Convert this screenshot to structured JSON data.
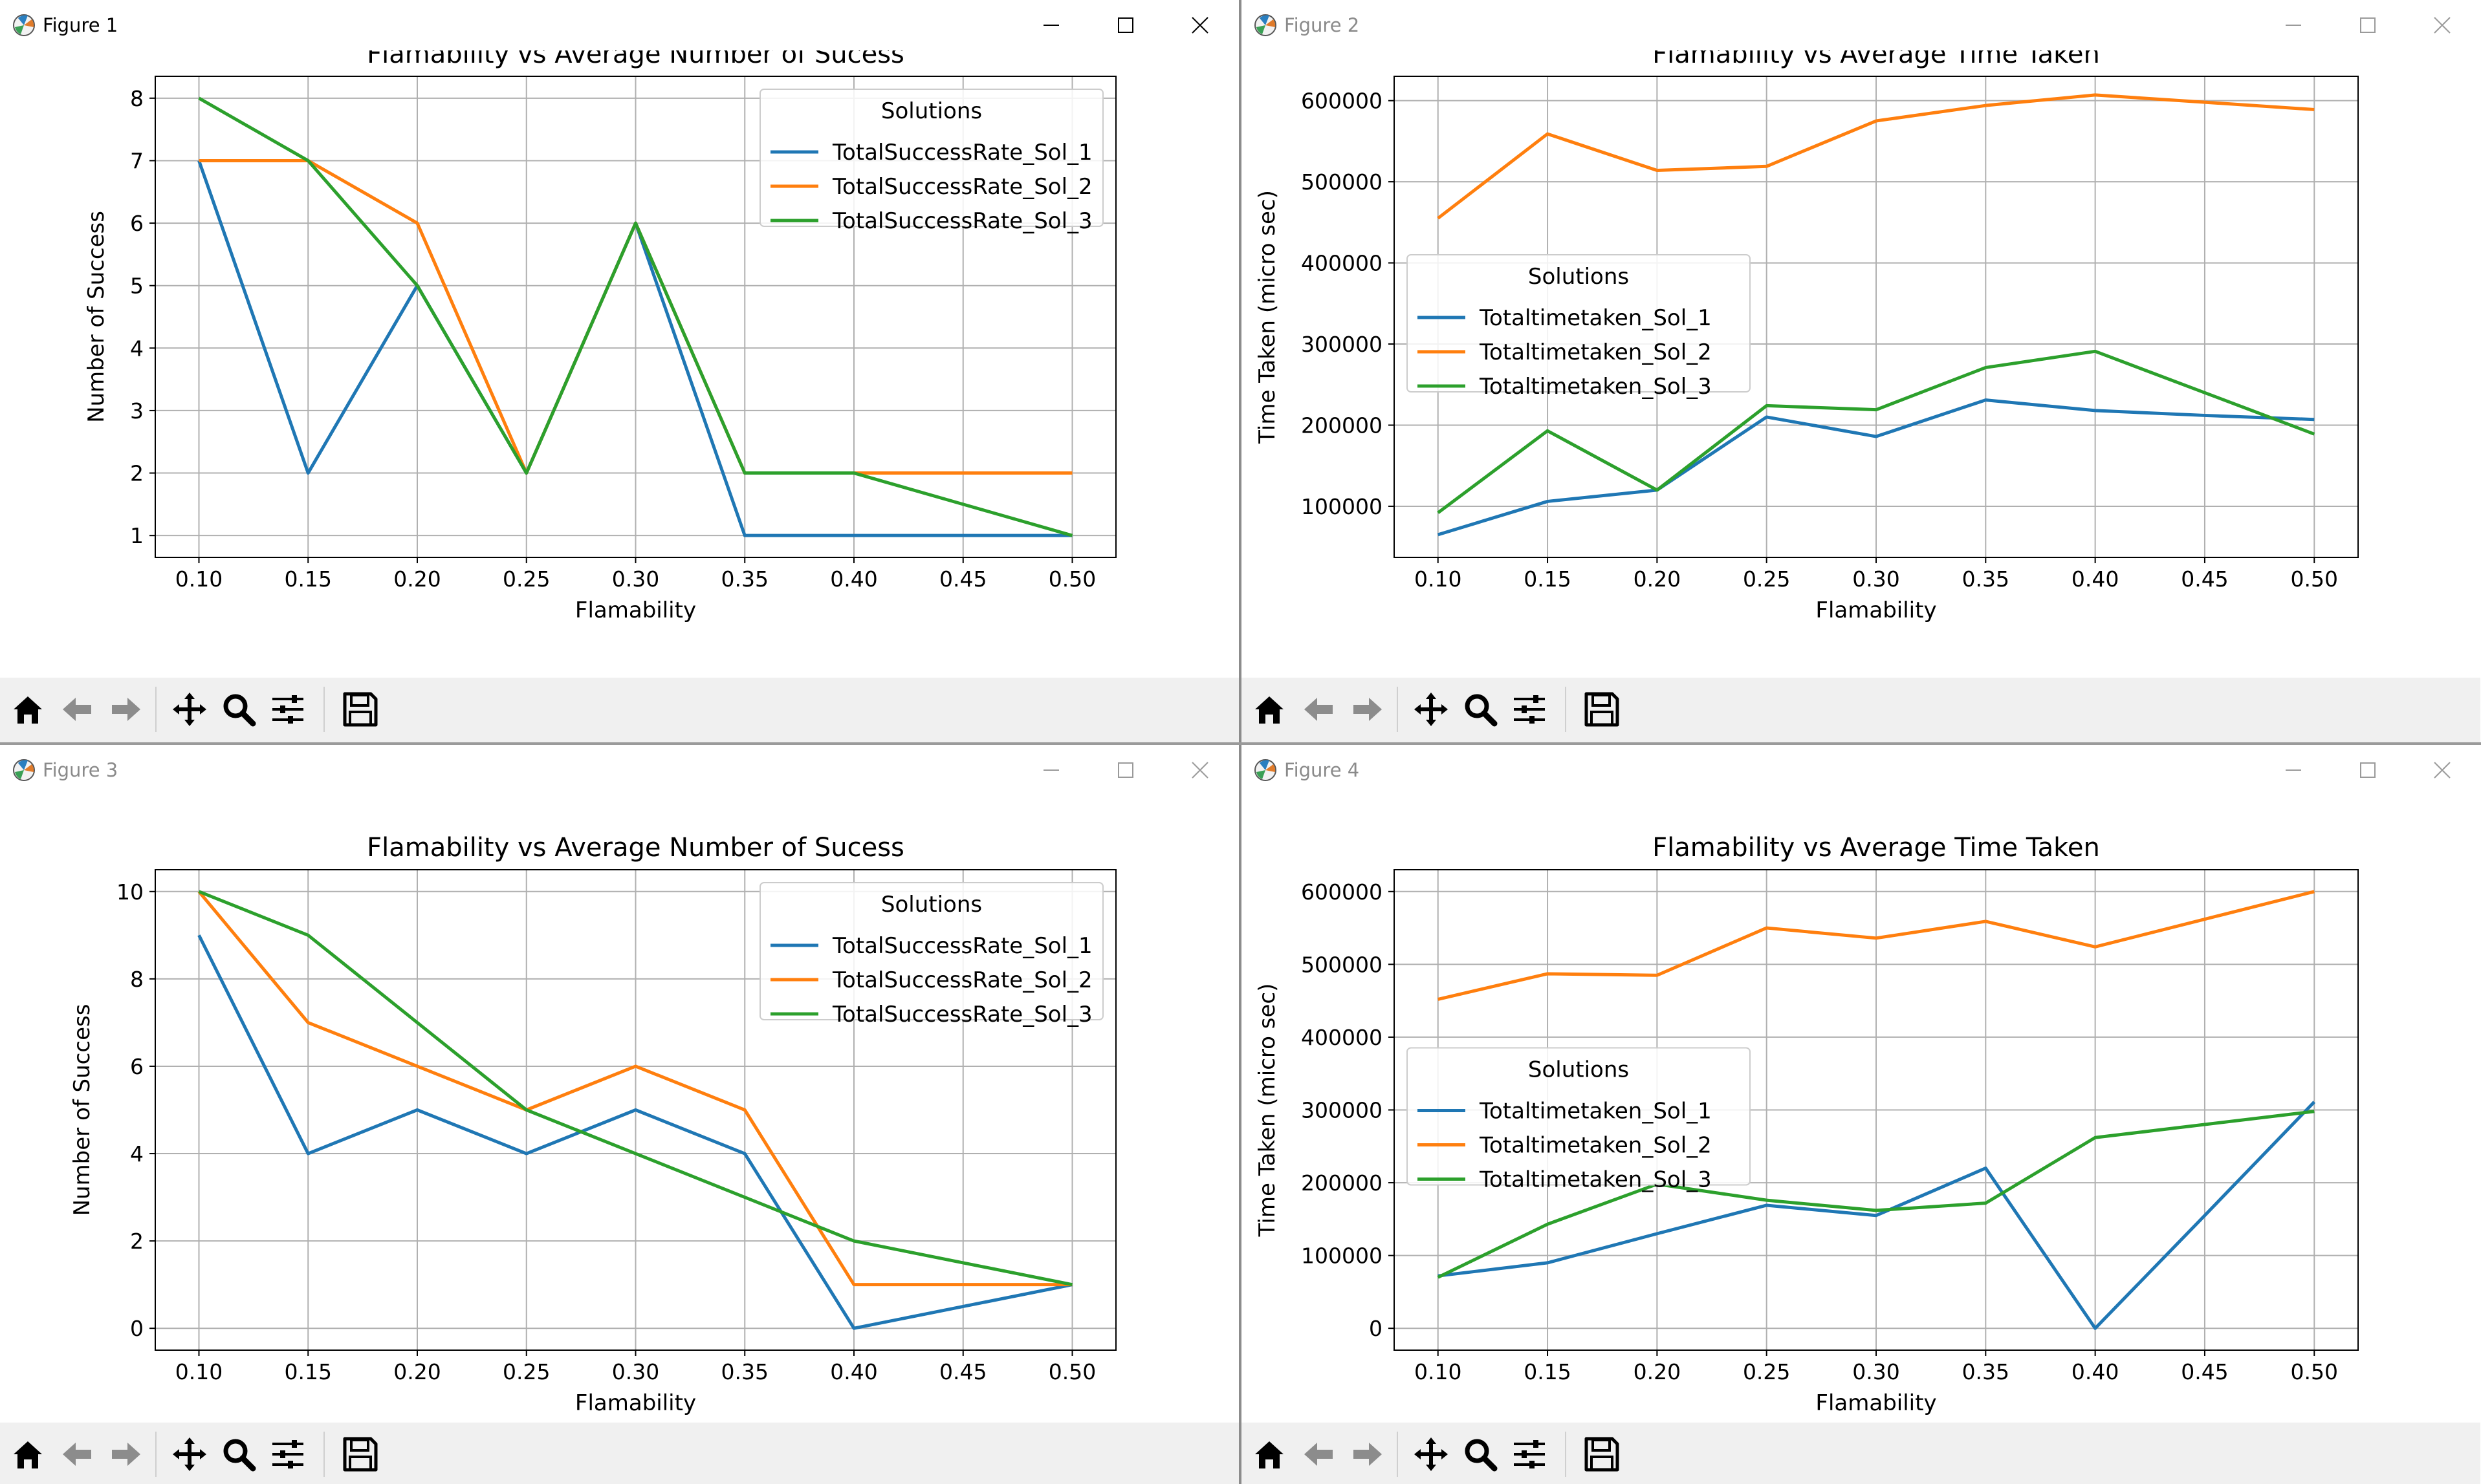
{
  "windows": [
    {
      "id": "fig1",
      "title": "Figure 1",
      "active": true,
      "chart_data": {
        "type": "line",
        "title": "Flamability vs Average Number of Sucess",
        "xlabel": "Flamability",
        "ylabel": "Number of Success",
        "x": [
          0.1,
          0.15,
          0.2,
          0.25,
          0.3,
          0.35,
          0.4,
          0.45,
          0.5
        ],
        "xticks": [
          "0.10",
          "0.15",
          "0.20",
          "0.25",
          "0.30",
          "0.35",
          "0.40",
          "0.45",
          "0.50"
        ],
        "yticks": [
          "1",
          "2",
          "3",
          "4",
          "5",
          "6",
          "7",
          "8"
        ],
        "ytick_values": [
          1,
          2,
          3,
          4,
          5,
          6,
          7,
          8
        ],
        "xlim": [
          0.08,
          0.52
        ],
        "ylim": [
          0.65,
          8.35
        ],
        "grid": true,
        "legend": {
          "title": "Solutions",
          "placement": "upper-right"
        },
        "series": [
          {
            "name": "TotalSuccessRate_Sol_1",
            "color": "#1f77b4",
            "values": [
              7,
              2,
              5,
              2,
              6,
              1,
              1,
              1,
              1
            ]
          },
          {
            "name": "TotalSuccessRate_Sol_2",
            "color": "#ff7f0e",
            "values": [
              7,
              7,
              6,
              2,
              6,
              2,
              2,
              2,
              2
            ]
          },
          {
            "name": "TotalSuccessRate_Sol_3",
            "color": "#2ca02c",
            "values": [
              8,
              7,
              5,
              2,
              6,
              2,
              2,
              1.5,
              1
            ]
          }
        ]
      }
    },
    {
      "id": "fig2",
      "title": "Figure 2",
      "active": false,
      "chart_data": {
        "type": "line",
        "title": "Flamability vs Average Time Taken",
        "xlabel": "Flamability",
        "ylabel": "Time Taken (micro sec)",
        "x": [
          0.1,
          0.15,
          0.2,
          0.25,
          0.3,
          0.35,
          0.4,
          0.45,
          0.5
        ],
        "xticks": [
          "0.10",
          "0.15",
          "0.20",
          "0.25",
          "0.30",
          "0.35",
          "0.40",
          "0.45",
          "0.50"
        ],
        "yticks": [
          "100000",
          "200000",
          "300000",
          "400000",
          "500000",
          "600000"
        ],
        "ytick_values": [
          100000,
          200000,
          300000,
          400000,
          500000,
          600000
        ],
        "xlim": [
          0.08,
          0.52
        ],
        "ylim": [
          37000,
          630000
        ],
        "grid": true,
        "legend": {
          "title": "Solutions",
          "placement": "center-left"
        },
        "series": [
          {
            "name": "Totaltimetaken_Sol_1",
            "color": "#1f77b4",
            "values": [
              65000,
              106000,
              120000,
              210000,
              186000,
              231000,
              218000,
              212000,
              207000
            ]
          },
          {
            "name": "Totaltimetaken_Sol_2",
            "color": "#ff7f0e",
            "values": [
              455000,
              559000,
              514000,
              519000,
              575000,
              594000,
              607000,
              598000,
              589000
            ]
          },
          {
            "name": "Totaltimetaken_Sol_3",
            "color": "#2ca02c",
            "values": [
              92000,
              193000,
              120000,
              224000,
              219000,
              271000,
              291000,
              240000,
              189000
            ]
          }
        ]
      }
    },
    {
      "id": "fig3",
      "title": "Figure 3",
      "active": false,
      "chart_data": {
        "type": "line",
        "title": "Flamability vs Average Number of Sucess",
        "xlabel": "Flamability",
        "ylabel": "Number of Success",
        "x": [
          0.1,
          0.15,
          0.2,
          0.25,
          0.3,
          0.35,
          0.4,
          0.45,
          0.5
        ],
        "xticks": [
          "0.10",
          "0.15",
          "0.20",
          "0.25",
          "0.30",
          "0.35",
          "0.40",
          "0.45",
          "0.50"
        ],
        "yticks": [
          "0",
          "2",
          "4",
          "6",
          "8",
          "10"
        ],
        "ytick_values": [
          0,
          2,
          4,
          6,
          8,
          10
        ],
        "xlim": [
          0.08,
          0.52
        ],
        "ylim": [
          -0.5,
          10.5
        ],
        "grid": true,
        "legend": {
          "title": "Solutions",
          "placement": "upper-right"
        },
        "series": [
          {
            "name": "TotalSuccessRate_Sol_1",
            "color": "#1f77b4",
            "values": [
              9,
              4,
              5,
              4,
              5,
              4,
              0,
              0.5,
              1
            ]
          },
          {
            "name": "TotalSuccessRate_Sol_2",
            "color": "#ff7f0e",
            "values": [
              10,
              7,
              6,
              5,
              6,
              5,
              1,
              1,
              1
            ]
          },
          {
            "name": "TotalSuccessRate_Sol_3",
            "color": "#2ca02c",
            "values": [
              10,
              9,
              7,
              5,
              4,
              3,
              2,
              1.5,
              1
            ]
          }
        ]
      }
    },
    {
      "id": "fig4",
      "title": "Figure 4",
      "active": false,
      "chart_data": {
        "type": "line",
        "title": "Flamability vs Average Time Taken",
        "xlabel": "Flamability",
        "ylabel": "Time Taken (micro sec)",
        "x": [
          0.1,
          0.15,
          0.2,
          0.25,
          0.3,
          0.35,
          0.4,
          0.45,
          0.5
        ],
        "xticks": [
          "0.10",
          "0.15",
          "0.20",
          "0.25",
          "0.30",
          "0.35",
          "0.40",
          "0.45",
          "0.50"
        ],
        "yticks": [
          "0",
          "100000",
          "200000",
          "300000",
          "400000",
          "500000",
          "600000"
        ],
        "ytick_values": [
          0,
          100000,
          200000,
          300000,
          400000,
          500000,
          600000
        ],
        "xlim": [
          0.08,
          0.52
        ],
        "ylim": [
          -30000,
          630000
        ],
        "grid": true,
        "legend": {
          "title": "Solutions",
          "placement": "center-left"
        },
        "series": [
          {
            "name": "Totaltimetaken_Sol_1",
            "color": "#1f77b4",
            "values": [
              72000,
              90000,
              130000,
              169000,
              155000,
              220000,
              0,
              155000,
              311000
            ]
          },
          {
            "name": "Totaltimetaken_Sol_2",
            "color": "#ff7f0e",
            "values": [
              452000,
              487000,
              485000,
              550000,
              536000,
              559000,
              524000,
              562000,
              600000
            ]
          },
          {
            "name": "Totaltimetaken_Sol_3",
            "color": "#2ca02c",
            "values": [
              70000,
              143000,
              198000,
              176000,
              162000,
              172000,
              262000,
              280000,
              298000
            ]
          }
        ]
      }
    }
  ],
  "toolbar_icons": [
    "home-icon",
    "back-arrow-icon",
    "forward-arrow-icon",
    "pan-icon",
    "zoom-icon",
    "configure-subplots-icon",
    "save-icon"
  ]
}
